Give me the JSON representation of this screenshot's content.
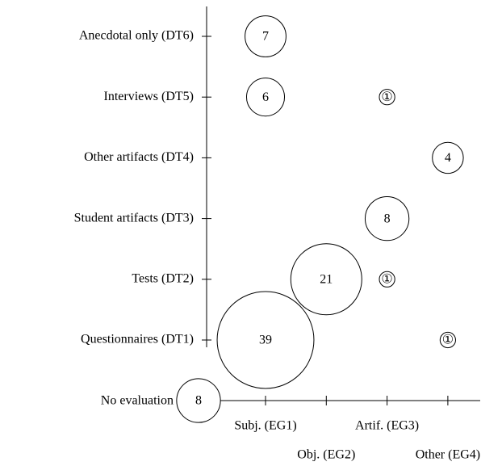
{
  "chart_data": {
    "type": "bubble",
    "y_categories": [
      "Anecdotal only (DT6)",
      "Interviews (DT5)",
      "Other artifacts (DT4)",
      "Student artifacts (DT3)",
      "Tests (DT2)",
      "Questionnaires (DT1)"
    ],
    "x_categories": [
      "Subj. (EG1)",
      "Obj. (EG2)",
      "Artif. (EG3)",
      "Other (EG4)"
    ],
    "values": [
      [
        7,
        null,
        null,
        null
      ],
      [
        6,
        null,
        1,
        null
      ],
      [
        null,
        null,
        null,
        4
      ],
      [
        null,
        null,
        8,
        null
      ],
      [
        null,
        21,
        1,
        null
      ],
      [
        39,
        null,
        null,
        1
      ]
    ],
    "value_labels": [
      [
        "7",
        null,
        null,
        null
      ],
      [
        "6",
        null,
        "①",
        null
      ],
      [
        null,
        null,
        null,
        "4"
      ],
      [
        null,
        null,
        "8",
        null
      ],
      [
        null,
        "21",
        "①",
        null
      ],
      [
        "39",
        null,
        null,
        "①"
      ]
    ],
    "no_evaluation": {
      "label": "No evaluation",
      "value": 8,
      "value_label": "8"
    }
  }
}
